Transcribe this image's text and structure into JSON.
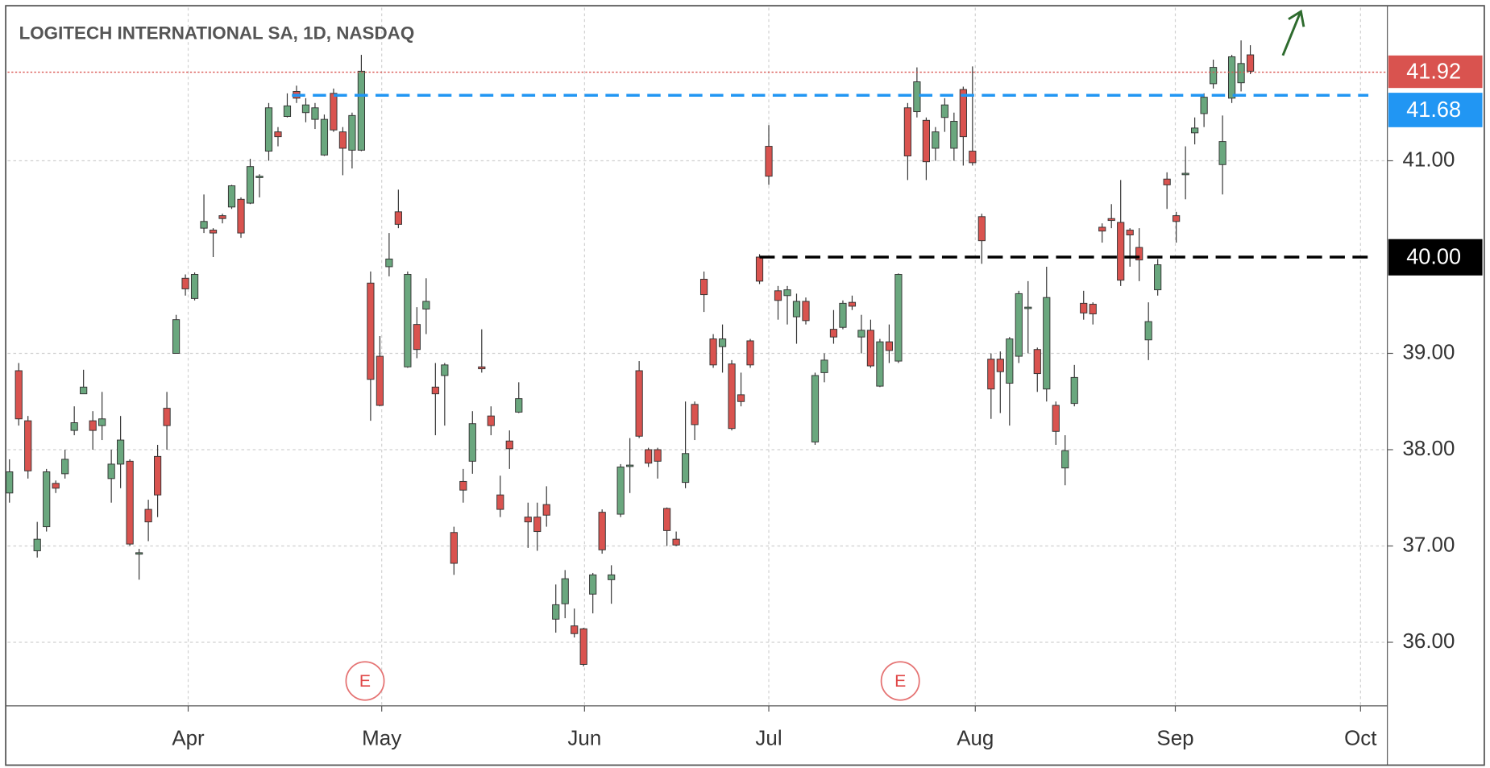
{
  "chart_data": {
    "type": "candlestick",
    "title": "LOGITECH INTERNATIONAL SA, 1D, NASDAQ",
    "open": [
      37.55,
      38.82,
      38.3,
      36.95,
      37.2,
      37.65,
      37.75,
      38.2,
      38.58,
      38.3,
      38.25,
      37.7,
      37.85,
      37.88,
      36.92,
      37.38,
      37.93,
      38.43,
      39.0,
      39.78,
      39.57,
      40.3,
      40.28,
      40.43,
      40.52,
      40.6,
      40.56,
      40.83,
      41.1,
      41.3,
      41.46,
      41.72,
      41.5,
      41.43,
      41.06,
      41.7,
      41.3,
      41.11,
      41.11,
      39.73,
      38.97,
      39.9,
      40.47,
      38.86,
      39.3,
      39.46,
      38.65,
      38.77,
      37.14,
      37.67,
      37.88,
      38.86,
      38.35,
      37.53,
      38.09,
      38.39,
      37.3,
      37.3,
      37.43,
      36.24,
      36.4,
      36.17,
      36.14,
      36.5,
      37.35,
      36.65,
      37.33,
      37.83,
      38.82,
      38.0,
      38.0,
      37.39,
      37.07,
      37.66,
      38.47,
      39.77,
      39.15,
      39.07,
      38.89,
      38.57,
      39.13,
      40.0,
      41.15,
      39.65,
      39.6,
      39.38,
      39.54,
      38.08,
      38.8,
      39.25,
      39.27,
      39.53,
      39.17,
      39.24,
      38.66,
      39.12,
      38.92,
      41.55,
      41.51,
      41.42,
      41.13,
      41.45,
      41.13,
      41.74,
      41.1,
      40.42,
      38.94,
      38.94,
      38.69,
      38.97,
      39.47,
      39.04,
      38.63,
      38.46,
      37.81,
      38.48,
      39.52,
      39.51,
      40.31,
      40.4,
      40.36,
      40.28,
      40.1,
      39.14,
      39.66,
      40.81,
      40.43,
      40.86,
      41.29,
      41.49,
      41.8,
      40.96,
      41.65,
      41.81,
      42.1
    ],
    "high": [
      37.9,
      38.9,
      38.35,
      37.25,
      37.8,
      37.68,
      38.0,
      38.45,
      38.83,
      38.4,
      38.6,
      38.0,
      38.35,
      37.9,
      36.97,
      37.48,
      38.05,
      38.6,
      39.4,
      39.82,
      39.84,
      40.65,
      40.3,
      40.45,
      40.75,
      40.62,
      41.02,
      40.86,
      41.6,
      41.35,
      41.7,
      41.78,
      41.65,
      41.6,
      41.48,
      41.75,
      41.35,
      41.5,
      42.1,
      39.85,
      39.18,
      40.25,
      40.7,
      39.85,
      39.48,
      39.78,
      38.9,
      38.9,
      37.2,
      37.8,
      38.4,
      39.25,
      38.45,
      37.73,
      38.2,
      38.7,
      37.45,
      37.45,
      37.62,
      36.6,
      36.75,
      36.35,
      36.15,
      36.72,
      37.38,
      36.8,
      37.85,
      38.12,
      38.92,
      38.02,
      38.02,
      37.4,
      37.15,
      38.5,
      38.5,
      39.85,
      39.2,
      39.3,
      38.93,
      38.8,
      39.15,
      40.03,
      41.37,
      39.7,
      39.7,
      39.62,
      39.58,
      38.8,
      39.0,
      39.45,
      39.55,
      39.6,
      39.4,
      39.35,
      39.15,
      39.3,
      39.83,
      41.6,
      41.97,
      41.45,
      41.35,
      41.65,
      41.5,
      41.77,
      41.98,
      40.45,
      39.0,
      39.02,
      39.17,
      39.65,
      39.75,
      39.06,
      39.9,
      38.5,
      38.15,
      38.88,
      39.65,
      39.53,
      40.35,
      40.55,
      40.8,
      40.3,
      40.3,
      39.53,
      39.98,
      40.88,
      40.47,
      41.15,
      41.45,
      41.7,
      42.05,
      41.47,
      42.1,
      42.25,
      42.2
    ],
    "low": [
      37.45,
      38.25,
      37.7,
      36.88,
      37.15,
      37.55,
      37.7,
      38.15,
      38.58,
      38.0,
      38.1,
      37.45,
      37.6,
      37.0,
      36.65,
      37.05,
      37.3,
      38.0,
      39.0,
      39.6,
      39.55,
      40.25,
      40.0,
      40.35,
      40.5,
      40.2,
      40.55,
      40.62,
      41.0,
      41.15,
      41.45,
      41.6,
      41.4,
      41.33,
      41.05,
      41.3,
      40.85,
      40.92,
      41.1,
      38.3,
      38.45,
      39.8,
      40.3,
      38.85,
      38.95,
      39.2,
      38.15,
      38.25,
      36.7,
      37.45,
      37.75,
      38.8,
      38.15,
      37.3,
      37.8,
      38.38,
      36.98,
      36.95,
      37.2,
      36.1,
      36.25,
      36.05,
      35.75,
      36.3,
      36.92,
      36.4,
      37.3,
      37.55,
      38.12,
      37.82,
      37.7,
      37.0,
      37.0,
      37.6,
      38.1,
      39.43,
      38.85,
      38.8,
      38.2,
      38.45,
      38.85,
      39.72,
      40.75,
      39.35,
      39.3,
      39.1,
      39.3,
      38.05,
      38.7,
      39.1,
      39.25,
      39.45,
      39.0,
      38.85,
      38.65,
      38.9,
      38.9,
      40.8,
      41.45,
      40.8,
      41.0,
      41.3,
      41.0,
      40.95,
      40.95,
      39.93,
      38.32,
      38.38,
      38.25,
      38.9,
      39.0,
      38.6,
      38.5,
      38.05,
      37.63,
      38.45,
      39.35,
      39.3,
      40.15,
      40.3,
      39.7,
      39.9,
      39.75,
      38.93,
      39.6,
      40.5,
      40.15,
      40.6,
      41.17,
      41.35,
      41.75,
      40.65,
      41.6,
      41.72,
      41.9
    ],
    "close": [
      37.77,
      38.32,
      37.78,
      37.07,
      37.77,
      37.6,
      37.9,
      38.28,
      38.65,
      38.2,
      38.32,
      37.85,
      38.1,
      37.02,
      36.93,
      37.25,
      37.53,
      38.25,
      39.35,
      39.67,
      39.82,
      40.37,
      40.25,
      40.4,
      40.74,
      40.25,
      40.94,
      40.84,
      41.55,
      41.25,
      41.57,
      41.65,
      41.58,
      41.55,
      41.43,
      41.32,
      41.13,
      41.47,
      41.93,
      38.73,
      38.46,
      39.98,
      40.34,
      39.82,
      39.04,
      39.54,
      38.58,
      38.88,
      36.82,
      37.58,
      38.27,
      38.84,
      38.25,
      37.38,
      38.01,
      38.53,
      37.25,
      37.15,
      37.32,
      36.39,
      36.66,
      36.09,
      35.77,
      36.7,
      36.96,
      36.7,
      37.82,
      37.84,
      38.14,
      37.86,
      37.88,
      37.16,
      37.01,
      37.96,
      38.26,
      39.61,
      38.88,
      39.15,
      38.22,
      38.5,
      38.88,
      39.75,
      40.84,
      39.55,
      39.66,
      39.54,
      39.34,
      38.77,
      38.93,
      39.17,
      39.52,
      39.49,
      39.24,
      38.87,
      39.12,
      39.03,
      39.82,
      41.05,
      41.82,
      40.99,
      41.3,
      41.58,
      41.41,
      41.25,
      40.98,
      40.17,
      38.63,
      38.81,
      39.15,
      39.62,
      39.48,
      38.79,
      39.58,
      38.19,
      37.99,
      38.75,
      39.42,
      39.41,
      40.27,
      40.38,
      39.76,
      40.23,
      39.97,
      39.33,
      39.92,
      40.75,
      40.37,
      40.87,
      41.34,
      41.66,
      41.97,
      41.2,
      42.08,
      42.01,
      41.93
    ],
    "up_color": "#6aa77e",
    "down_color": "#d9534f",
    "ylim": [
      35.34,
      42.59
    ],
    "yticks": [
      {
        "value": 36,
        "label": "36.00"
      },
      {
        "value": 37,
        "label": "37.00"
      },
      {
        "value": 38,
        "label": "38.00"
      },
      {
        "value": 39,
        "label": "39.00"
      },
      {
        "value": 41,
        "label": "41.00"
      }
    ],
    "xlim": [
      -0.2,
      148.8
    ],
    "xticks": [
      {
        "value": 19.3,
        "label": "Apr"
      },
      {
        "value": 40.2,
        "label": "May"
      },
      {
        "value": 62.1,
        "label": "Jun"
      },
      {
        "value": 82.0,
        "label": "Jul"
      },
      {
        "value": 104.3,
        "label": "Aug"
      },
      {
        "value": 125.9,
        "label": "Sep"
      },
      {
        "value": 145.9,
        "label": "Oct"
      }
    ],
    "grid": true,
    "levels": [
      {
        "value": 41.92,
        "color": "#d9534f",
        "style": "dotted"
      },
      {
        "value": 41.68,
        "color": "#2196f3",
        "style": "dashed"
      },
      {
        "value": 40,
        "label": "40.00",
        "color": "#000000",
        "style": "dashed"
      }
    ],
    "events": [
      {
        "label": "E",
        "index": 38.4
      },
      {
        "label": "E",
        "index": 96.2
      }
    ]
  }
}
